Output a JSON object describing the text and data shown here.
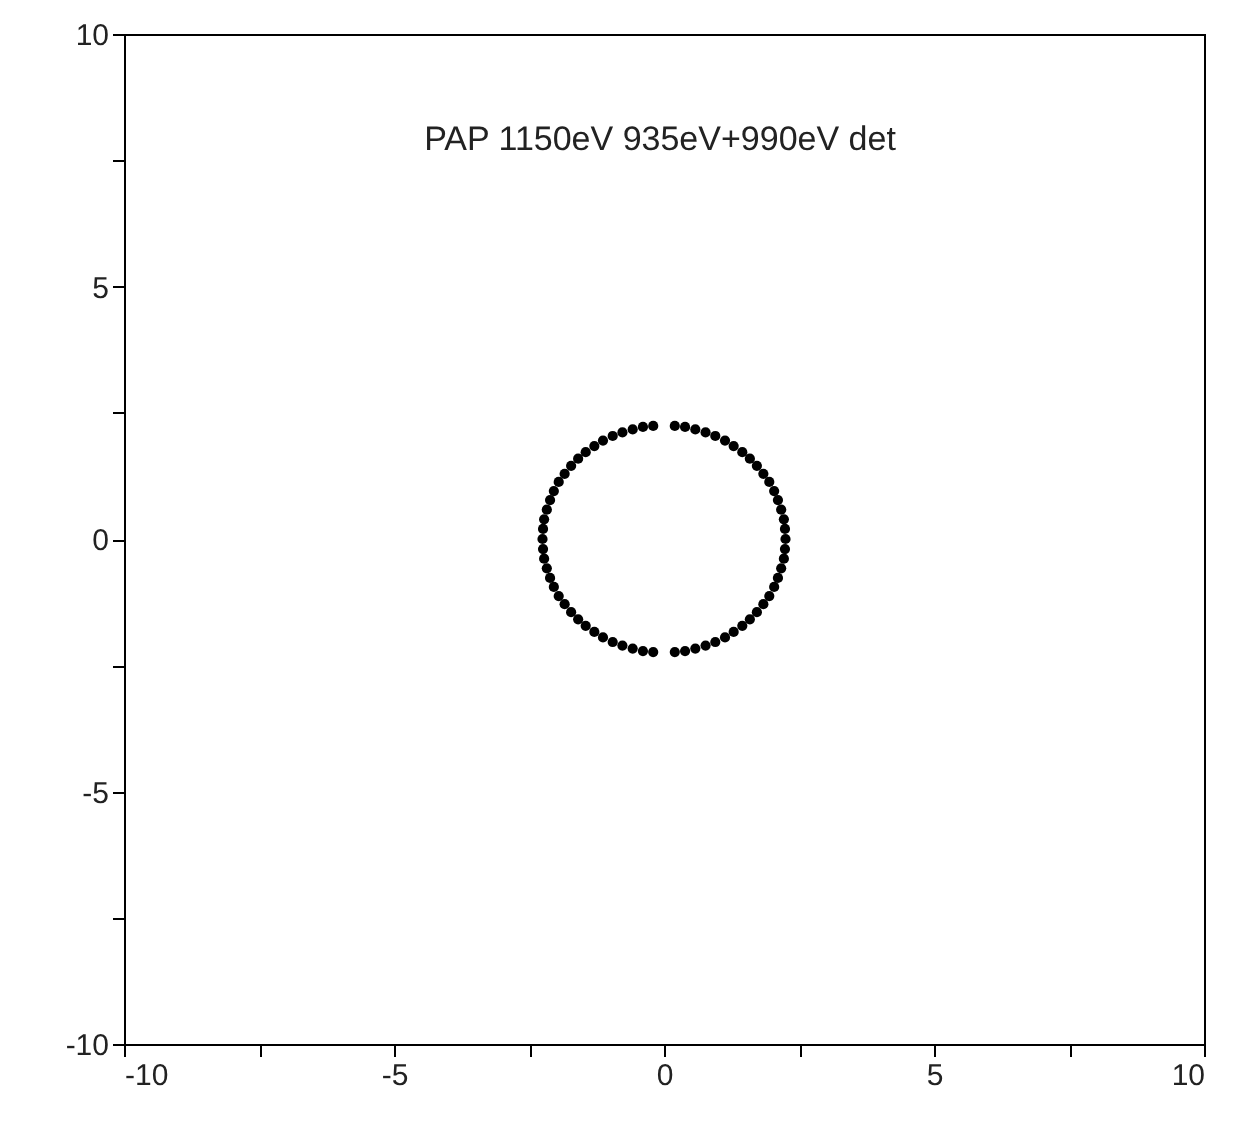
{
  "chart_data": {
    "type": "scatter",
    "annotations": [
      "PAP 1150eV  935eV+990eV det"
    ],
    "x": [
      2.25,
      2.24,
      2.22,
      2.17,
      2.11,
      2.04,
      1.95,
      1.84,
      1.72,
      1.59,
      1.45,
      1.29,
      1.13,
      0.95,
      0.77,
      0.58,
      0.39,
      0.2,
      -0.2,
      -0.39,
      -0.58,
      -0.77,
      -0.95,
      -1.13,
      -1.29,
      -1.45,
      -1.59,
      -1.72,
      -1.84,
      -1.95,
      -2.04,
      -2.11,
      -2.17,
      -2.22,
      -2.24,
      -2.25,
      -2.24,
      -2.22,
      -2.17,
      -2.11,
      -2.04,
      -1.95,
      -1.84,
      -1.72,
      -1.59,
      -1.45,
      -1.29,
      -1.13,
      -0.95,
      -0.77,
      -0.58,
      -0.39,
      -0.2,
      0.2,
      0.39,
      0.58,
      0.77,
      0.95,
      1.13,
      1.29,
      1.45,
      1.59,
      1.72,
      1.84,
      1.95,
      2.04,
      2.11,
      2.17,
      2.22,
      2.24
    ],
    "series": [
      {
        "color": "#000000",
        "values": [
          0,
          0.2,
          0.39,
          0.58,
          0.77,
          0.95,
          1.13,
          1.29,
          1.45,
          1.59,
          1.72,
          1.84,
          1.95,
          2.04,
          2.11,
          2.17,
          2.22,
          2.24,
          2.24,
          2.22,
          2.17,
          2.11,
          2.04,
          1.95,
          1.84,
          1.72,
          1.59,
          1.45,
          1.29,
          1.13,
          0.95,
          0.77,
          0.58,
          0.39,
          0.2,
          0,
          -0.2,
          -0.39,
          -0.58,
          -0.77,
          -0.95,
          -1.13,
          -1.29,
          -1.45,
          -1.59,
          -1.72,
          -1.84,
          -1.95,
          -2.04,
          -2.11,
          -2.17,
          -2.22,
          -2.24,
          -2.24,
          -2.22,
          -2.17,
          -2.11,
          -2.04,
          -1.95,
          -1.84,
          -1.72,
          -1.59,
          -1.45,
          -1.29,
          -1.13,
          -0.95,
          -0.77,
          -0.58,
          -0.39,
          -0.2
        ]
      }
    ],
    "xlim": [
      -10,
      10
    ],
    "ylim": [
      -10,
      10
    ],
    "xticks": [
      -10,
      {
        "value": -7.5,
        "label": null
      },
      -5,
      {
        "value": -2.5,
        "label": null
      },
      0,
      {
        "value": 2.5,
        "label": null
      },
      5,
      {
        "value": 7.5,
        "label": null
      },
      10
    ],
    "yticks": [
      -10,
      {
        "value": -7.5,
        "label": null
      },
      -5,
      {
        "value": -2.5,
        "label": null
      },
      0,
      {
        "value": 2.5,
        "label": null
      },
      5,
      {
        "value": 7.5,
        "label": null
      },
      10
    ],
    "marker": "circle",
    "grid": false
  }
}
